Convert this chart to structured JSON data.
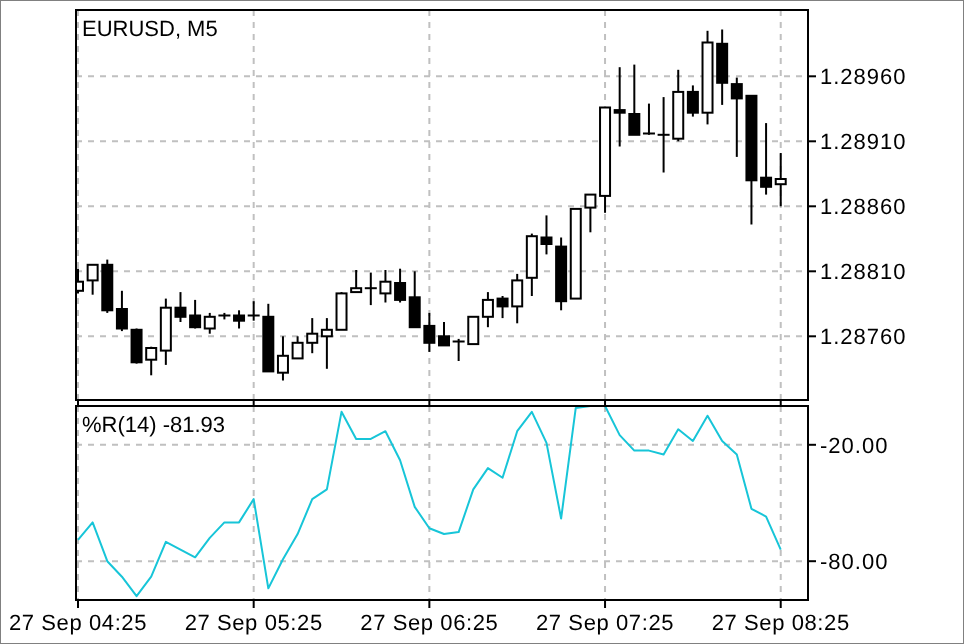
{
  "chart_data": [
    {
      "type": "candlestick",
      "title": "EURUSD, M5",
      "categories": [
        null,
        null,
        null,
        null,
        null,
        null,
        null,
        null,
        null,
        null,
        null,
        null,
        null,
        null,
        null,
        null,
        null,
        null,
        null,
        null,
        null,
        null,
        null,
        null,
        null,
        null,
        null,
        null,
        null,
        null,
        null,
        null,
        null,
        null,
        null,
        null,
        null,
        null,
        null,
        null,
        null,
        null,
        null,
        null,
        null,
        null,
        null,
        null,
        null
      ],
      "ohlc": [
        [
          1.28795,
          1.28812,
          1.28793,
          1.28802
        ],
        [
          1.28803,
          1.28815,
          1.28792,
          1.28815
        ],
        [
          1.28815,
          1.28819,
          1.28778,
          1.2878
        ],
        [
          1.28781,
          1.28795,
          1.28764,
          1.28766
        ],
        [
          1.28765,
          1.28766,
          1.28739,
          1.2874
        ],
        [
          1.28742,
          1.28752,
          1.2873,
          1.28751
        ],
        [
          1.28749,
          1.28789,
          1.28738,
          1.28782
        ],
        [
          1.28782,
          1.28794,
          1.28771,
          1.28775
        ],
        [
          1.28776,
          1.28788,
          1.28766,
          1.28767
        ],
        [
          1.28766,
          1.28778,
          1.28762,
          1.28775
        ],
        [
          1.28776,
          1.28778,
          1.28773,
          1.28776
        ],
        [
          1.28776,
          1.2878,
          1.28766,
          1.28772
        ],
        [
          1.28776,
          1.28787,
          1.28772,
          1.28776
        ],
        [
          1.28775,
          1.28785,
          1.28733,
          1.28733
        ],
        [
          1.28732,
          1.2876,
          1.28726,
          1.28745
        ],
        [
          1.28743,
          1.2876,
          1.28743,
          1.28755
        ],
        [
          1.28755,
          1.28774,
          1.28747,
          1.28762
        ],
        [
          1.2876,
          1.28774,
          1.28735,
          1.28765
        ],
        [
          1.28765,
          1.28794,
          1.28765,
          1.28793
        ],
        [
          1.28794,
          1.28811,
          1.28794,
          1.28797
        ],
        [
          1.28797,
          1.28809,
          1.28784,
          1.28797
        ],
        [
          1.28793,
          1.28811,
          1.28786,
          1.28802
        ],
        [
          1.28801,
          1.28812,
          1.28786,
          1.28788
        ],
        [
          1.2879,
          1.2881,
          1.28767,
          1.28767
        ],
        [
          1.28768,
          1.28778,
          1.28748,
          1.28755
        ],
        [
          1.2876,
          1.28771,
          1.28753,
          1.28753
        ],
        [
          1.28756,
          1.28758,
          1.28741,
          1.28756
        ],
        [
          1.28754,
          1.28775,
          1.28754,
          1.28775
        ],
        [
          1.28775,
          1.28794,
          1.28767,
          1.28788
        ],
        [
          1.28789,
          1.28791,
          1.28774,
          1.28783
        ],
        [
          1.28783,
          1.28808,
          1.2877,
          1.28803
        ],
        [
          1.28805,
          1.28839,
          1.28791,
          1.28837
        ],
        [
          1.28836,
          1.28853,
          1.28823,
          1.28831
        ],
        [
          1.28829,
          1.28836,
          1.2878,
          1.28787
        ],
        [
          1.28789,
          1.28858,
          1.28789,
          1.28858
        ],
        [
          1.28859,
          1.28869,
          1.2884,
          1.28869
        ],
        [
          1.28868,
          1.28936,
          1.28855,
          1.28936
        ],
        [
          1.28934,
          1.28967,
          1.28906,
          1.28932
        ],
        [
          1.28931,
          1.28969,
          1.28915,
          1.28915
        ],
        [
          1.28916,
          1.28939,
          1.28915,
          1.28916
        ],
        [
          1.28915,
          1.28944,
          1.28886,
          1.28915
        ],
        [
          1.28912,
          1.28965,
          1.2891,
          1.28948
        ],
        [
          1.28948,
          1.28953,
          1.28929,
          1.28932
        ],
        [
          1.28932,
          1.28995,
          1.28923,
          1.28986
        ],
        [
          1.28985,
          1.28996,
          1.28938,
          1.28955
        ],
        [
          1.28954,
          1.28959,
          1.28898,
          1.28943
        ],
        [
          1.28945,
          1.28945,
          1.28846,
          1.2888
        ],
        [
          1.28882,
          1.28924,
          1.28869,
          1.28875
        ],
        [
          1.28877,
          1.28901,
          1.2886,
          1.28881
        ]
      ],
      "color": "#000000",
      "ylim": [
        1.28711,
        1.29011
      ],
      "yticks": [
        {
          "value": 1.2876,
          "label": "1.28760"
        },
        {
          "value": 1.2881,
          "label": "1.28810"
        },
        {
          "value": 1.2886,
          "label": "1.28860"
        },
        {
          "value": 1.2891,
          "label": "1.28910"
        },
        {
          "value": 1.2896,
          "label": "1.28960"
        }
      ],
      "grid": true,
      "tick_labels": "y"
    },
    {
      "type": "line",
      "title": "%R(14) -81.93",
      "categories": [
        "27 Sep 04:25",
        null,
        null,
        null,
        null,
        null,
        null,
        null,
        null,
        null,
        null,
        null,
        "27 Sep 05:25",
        null,
        null,
        null,
        null,
        null,
        null,
        null,
        null,
        null,
        null,
        null,
        "27 Sep 06:25",
        null,
        null,
        null,
        null,
        null,
        null,
        null,
        null,
        null,
        null,
        null,
        "27 Sep 07:25",
        null,
        null,
        null,
        null,
        null,
        null,
        null,
        null,
        null,
        null,
        null,
        "27 Sep 08:25"
      ],
      "series": [
        {
          "color": "#17c5d8",
          "values": [
            -69,
            -60,
            -80,
            -88,
            -98,
            -88,
            -70,
            -74,
            -78,
            -68,
            -60,
            -60,
            -48,
            -94,
            -79,
            -66,
            -48,
            -43,
            -3,
            -17,
            -17,
            -13,
            -28,
            -52,
            -63,
            -66,
            -65,
            -43,
            -32,
            -37,
            -13,
            -3,
            -19,
            -58,
            -1,
            0,
            0,
            -15,
            -23,
            -23,
            -25,
            -12,
            -18,
            -5,
            -18,
            -25,
            -53,
            -57,
            -74
          ]
        }
      ],
      "ylim": [
        -100,
        0
      ],
      "yticks": [
        {
          "value": -80,
          "label": "-80.00"
        },
        {
          "value": -20,
          "label": "-20.00"
        }
      ],
      "grid": true
    }
  ]
}
